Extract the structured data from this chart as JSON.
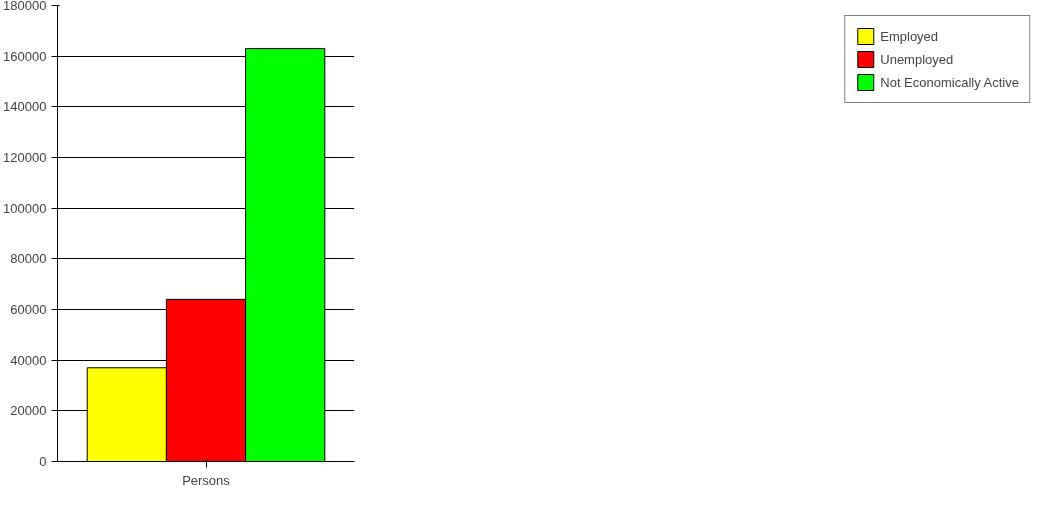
{
  "chart_data": {
    "type": "bar",
    "categories": [
      "Persons"
    ],
    "series": [
      {
        "name": "Employed",
        "color": "#ffff00",
        "values": [
          37000
        ]
      },
      {
        "name": "Unemployed",
        "color": "#ff0000",
        "values": [
          64000
        ]
      },
      {
        "name": "Not Economically Active",
        "color": "#00ff00",
        "values": [
          163000
        ]
      }
    ],
    "ylim": [
      0,
      180000
    ],
    "yticks": [
      0,
      20000,
      40000,
      60000,
      80000,
      100000,
      120000,
      140000,
      160000,
      180000
    ],
    "grid": "y",
    "legend": "right"
  }
}
